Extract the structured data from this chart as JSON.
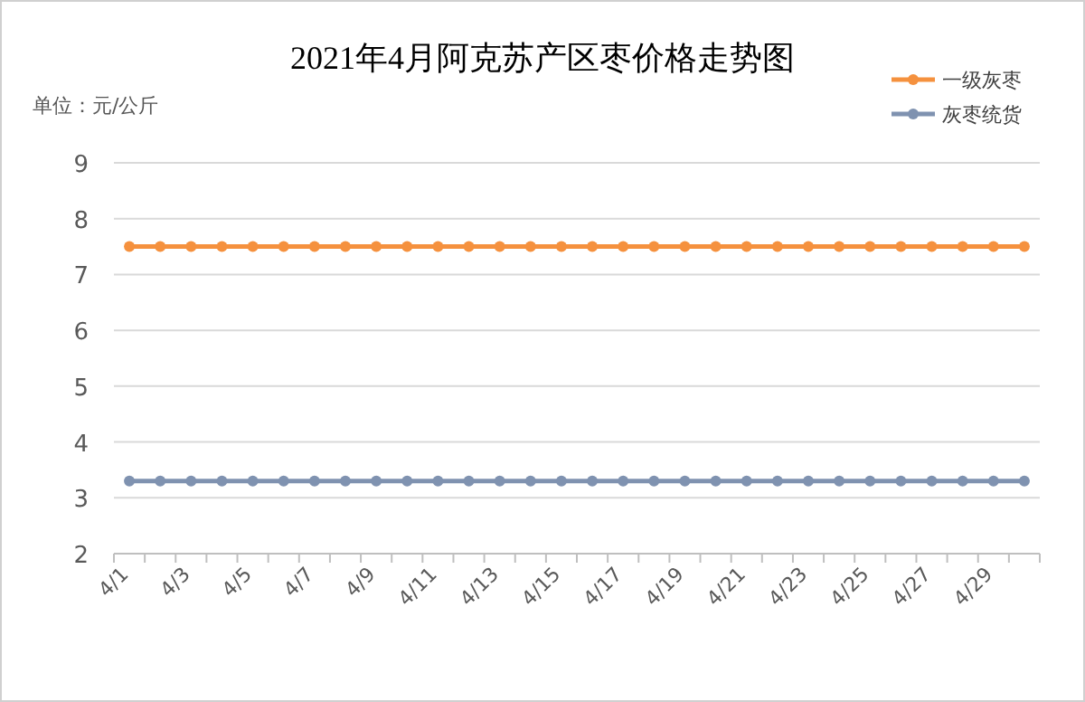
{
  "chart_data": {
    "type": "line",
    "title": "2021年4月阿克苏产区枣价格走势图",
    "ylabel": "单位：元/公斤",
    "categories": [
      "4/1",
      null,
      "4/3",
      null,
      "4/5",
      null,
      "4/7",
      null,
      "4/9",
      null,
      "4/11",
      null,
      "4/13",
      null,
      "4/15",
      null,
      "4/17",
      null,
      "4/19",
      null,
      "4/21",
      null,
      "4/23",
      null,
      "4/25",
      null,
      "4/27",
      null,
      "4/29",
      null
    ],
    "series": [
      {
        "name": "一级灰枣",
        "color": "#f5913e",
        "values": [
          7.5,
          7.5,
          7.5,
          7.5,
          7.5,
          7.5,
          7.5,
          7.5,
          7.5,
          7.5,
          7.5,
          7.5,
          7.5,
          7.5,
          7.5,
          7.5,
          7.5,
          7.5,
          7.5,
          7.5,
          7.5,
          7.5,
          7.5,
          7.5,
          7.5,
          7.5,
          7.5,
          7.5,
          7.5,
          7.5
        ]
      },
      {
        "name": "灰枣统货",
        "color": "#7f92b0",
        "values": [
          3.3,
          3.3,
          3.3,
          3.3,
          3.3,
          3.3,
          3.3,
          3.3,
          3.3,
          3.3,
          3.3,
          3.3,
          3.3,
          3.3,
          3.3,
          3.3,
          3.3,
          3.3,
          3.3,
          3.3,
          3.3,
          3.3,
          3.3,
          3.3,
          3.3,
          3.3,
          3.3,
          3.3,
          3.3,
          3.3
        ]
      }
    ],
    "ylim": [
      2,
      9
    ],
    "yticks": [
      2,
      3,
      4,
      5,
      6,
      7,
      8,
      9
    ],
    "grid": "y",
    "legend": "top right",
    "marker": "circle"
  }
}
